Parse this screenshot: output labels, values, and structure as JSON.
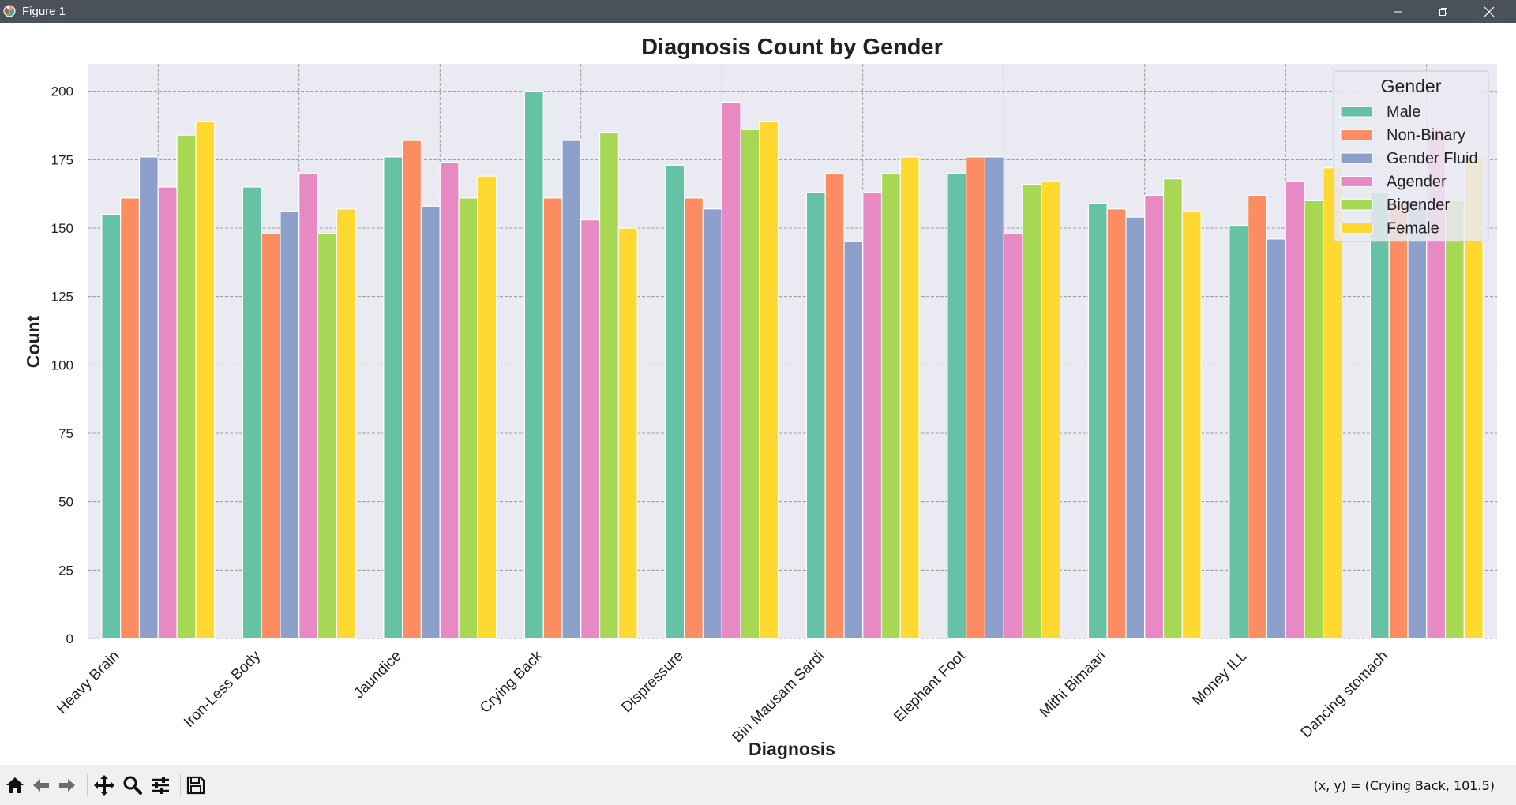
{
  "window": {
    "title": "Figure 1",
    "controls": [
      "minimize",
      "restore",
      "close"
    ]
  },
  "toolbar": {
    "tools": [
      "home-icon",
      "back-icon",
      "forward-icon",
      "pan-icon",
      "zoom-icon",
      "configure-icon",
      "save-icon"
    ],
    "coordinates": "(x, y) = (Crying Back, 101.5)"
  },
  "colors": {
    "axes_bg": "#eaeaf2",
    "grid": "#8a8a8a",
    "palette": [
      "#66c2a5",
      "#fc8d62",
      "#8da0cb",
      "#e78ac3",
      "#a6d854",
      "#ffd92f"
    ]
  },
  "chart_data": {
    "type": "bar",
    "title": "Diagnosis Count by Gender",
    "xlabel": "Diagnosis",
    "ylabel": "Count",
    "ylim": [
      0,
      210
    ],
    "yticks": [
      0,
      25,
      50,
      75,
      100,
      125,
      150,
      175,
      200
    ],
    "grid": true,
    "legend": {
      "title": "Gender",
      "position": "top-right"
    },
    "categories": [
      "Heavy Brain",
      "Iron-Less Body",
      "Jaundice",
      "Crying Back",
      "Dispressure",
      "Bin Mausam Sardi",
      "Elephant Foot",
      "Mithi Bimaari",
      "Money ILL",
      "Dancing stomach"
    ],
    "series": [
      {
        "name": "Male",
        "color": "#66c2a5",
        "values": [
          155,
          165,
          176,
          200,
          173,
          163,
          170,
          159,
          151,
          163
        ]
      },
      {
        "name": "Non-Binary",
        "color": "#fc8d62",
        "values": [
          161,
          148,
          182,
          161,
          161,
          170,
          176,
          157,
          162,
          160
        ]
      },
      {
        "name": "Gender Fluid",
        "color": "#8da0cb",
        "values": [
          176,
          156,
          158,
          182,
          157,
          145,
          176,
          154,
          146,
          160
        ]
      },
      {
        "name": "Agender",
        "color": "#e78ac3",
        "values": [
          165,
          170,
          174,
          153,
          196,
          163,
          148,
          162,
          167,
          186
        ]
      },
      {
        "name": "Bigender",
        "color": "#a6d854",
        "values": [
          184,
          148,
          161,
          185,
          186,
          170,
          166,
          168,
          160,
          160
        ]
      },
      {
        "name": "Female",
        "color": "#ffd92f",
        "values": [
          189,
          157,
          169,
          150,
          189,
          176,
          167,
          156,
          172,
          176
        ]
      }
    ]
  }
}
